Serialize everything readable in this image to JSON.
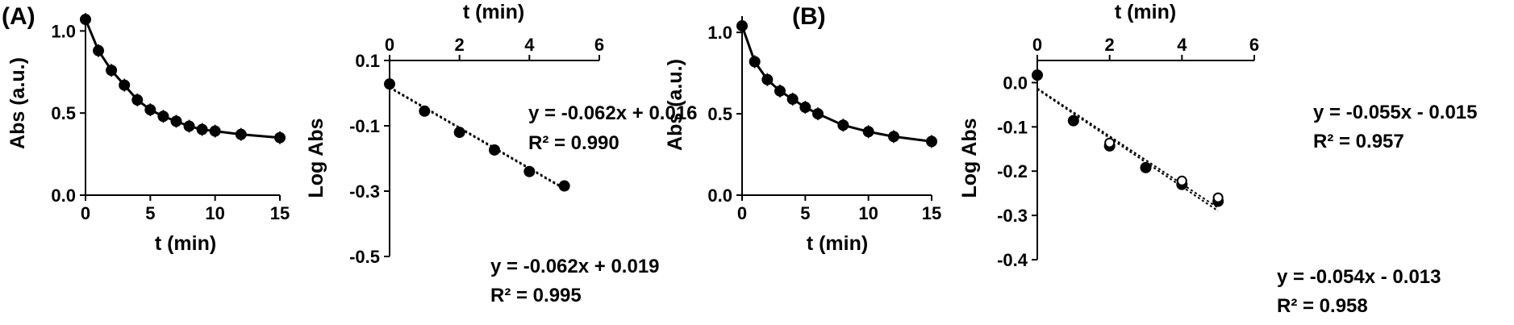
{
  "panel_labels": [
    "(A)",
    "(B)"
  ],
  "chart_data": [
    {
      "type": "line",
      "panel": "(A)",
      "xlabel": "t (min)",
      "ylabel": "Abs (a.u.)",
      "xlim": [
        0,
        15
      ],
      "ylim": [
        0,
        1.1
      ],
      "x_ticks": [
        0,
        5,
        10,
        15
      ],
      "y_ticks": [
        0.0,
        0.5,
        1.0
      ],
      "y_tick_labels": [
        "0.0",
        "0.5",
        "1.0"
      ],
      "series": [
        {
          "x": [
            0,
            1,
            2,
            3,
            4,
            5,
            6,
            7,
            8,
            9,
            10,
            12,
            15
          ],
          "y": [
            1.07,
            0.88,
            0.76,
            0.67,
            0.58,
            0.52,
            0.48,
            0.45,
            0.42,
            0.4,
            0.39,
            0.37,
            0.35
          ]
        }
      ]
    },
    {
      "type": "scatter",
      "panel": "(A)",
      "xlabel": "t (min)",
      "ylabel": "Log Abs",
      "x_axis_position": "top",
      "xlim": [
        0,
        6
      ],
      "ylim": [
        -0.5,
        0.1
      ],
      "x_ticks": [
        0,
        2,
        4,
        6
      ],
      "y_ticks": [
        -0.5,
        -0.3,
        -0.1,
        0.1
      ],
      "y_tick_labels": [
        "-0.5",
        "-0.3",
        "-0.1",
        "0.1"
      ],
      "series": [
        {
          "x": [
            0,
            1,
            2,
            3,
            4,
            5
          ],
          "y": [
            0.028,
            -0.055,
            -0.12,
            -0.174,
            -0.24,
            -0.284
          ]
        }
      ],
      "trendlines": [
        {
          "slope": -0.062,
          "intercept": 0.016
        },
        {
          "slope": -0.062,
          "intercept": 0.019
        }
      ],
      "annotations": [
        {
          "equation": "y = -0.062x + 0.016",
          "r2": "R² = 0.990"
        },
        {
          "equation": "y = -0.062x + 0.019",
          "r2": "R² = 0.995"
        }
      ]
    },
    {
      "type": "line",
      "panel": "(B)",
      "xlabel": "t (min)",
      "ylabel": "Abs (a.u.)",
      "xlim": [
        0,
        15
      ],
      "ylim": [
        0,
        1.1
      ],
      "x_ticks": [
        0,
        5,
        10,
        15
      ],
      "y_ticks": [
        0.0,
        0.5,
        1.0
      ],
      "y_tick_labels": [
        "0.0",
        "0.5",
        "1.0"
      ],
      "series": [
        {
          "x": [
            0,
            1,
            2,
            3,
            4,
            5,
            6,
            8,
            10,
            12,
            15
          ],
          "y": [
            1.04,
            0.82,
            0.71,
            0.64,
            0.59,
            0.54,
            0.5,
            0.43,
            0.39,
            0.36,
            0.33
          ]
        }
      ]
    },
    {
      "type": "scatter",
      "panel": "(B)",
      "xlabel": "t (min)",
      "ylabel": "Log Abs",
      "x_axis_position": "top",
      "xlim": [
        0,
        6
      ],
      "ylim": [
        -0.4,
        0.05
      ],
      "x_ticks": [
        0,
        2,
        4,
        6
      ],
      "y_ticks": [
        -0.4,
        -0.3,
        -0.2,
        -0.1,
        0.0
      ],
      "y_tick_labels": [
        "-0.4",
        "-0.3",
        "-0.2",
        "-0.1",
        "0.0"
      ],
      "series": [
        {
          "x": [
            0,
            1,
            2,
            3,
            4,
            5
          ],
          "y": [
            0.017,
            -0.086,
            -0.143,
            -0.192,
            -0.23,
            -0.268
          ]
        },
        {
          "x": [
            2,
            4,
            5
          ],
          "y": [
            -0.136,
            -0.222,
            -0.26
          ]
        }
      ],
      "trendlines": [
        {
          "slope": -0.055,
          "intercept": -0.015
        },
        {
          "slope": -0.054,
          "intercept": -0.013
        }
      ],
      "annotations": [
        {
          "equation": "y = -0.055x - 0.015",
          "r2": "R² = 0.957"
        },
        {
          "equation": "y = -0.054x - 0.013",
          "r2": "R² = 0.958"
        }
      ]
    }
  ]
}
